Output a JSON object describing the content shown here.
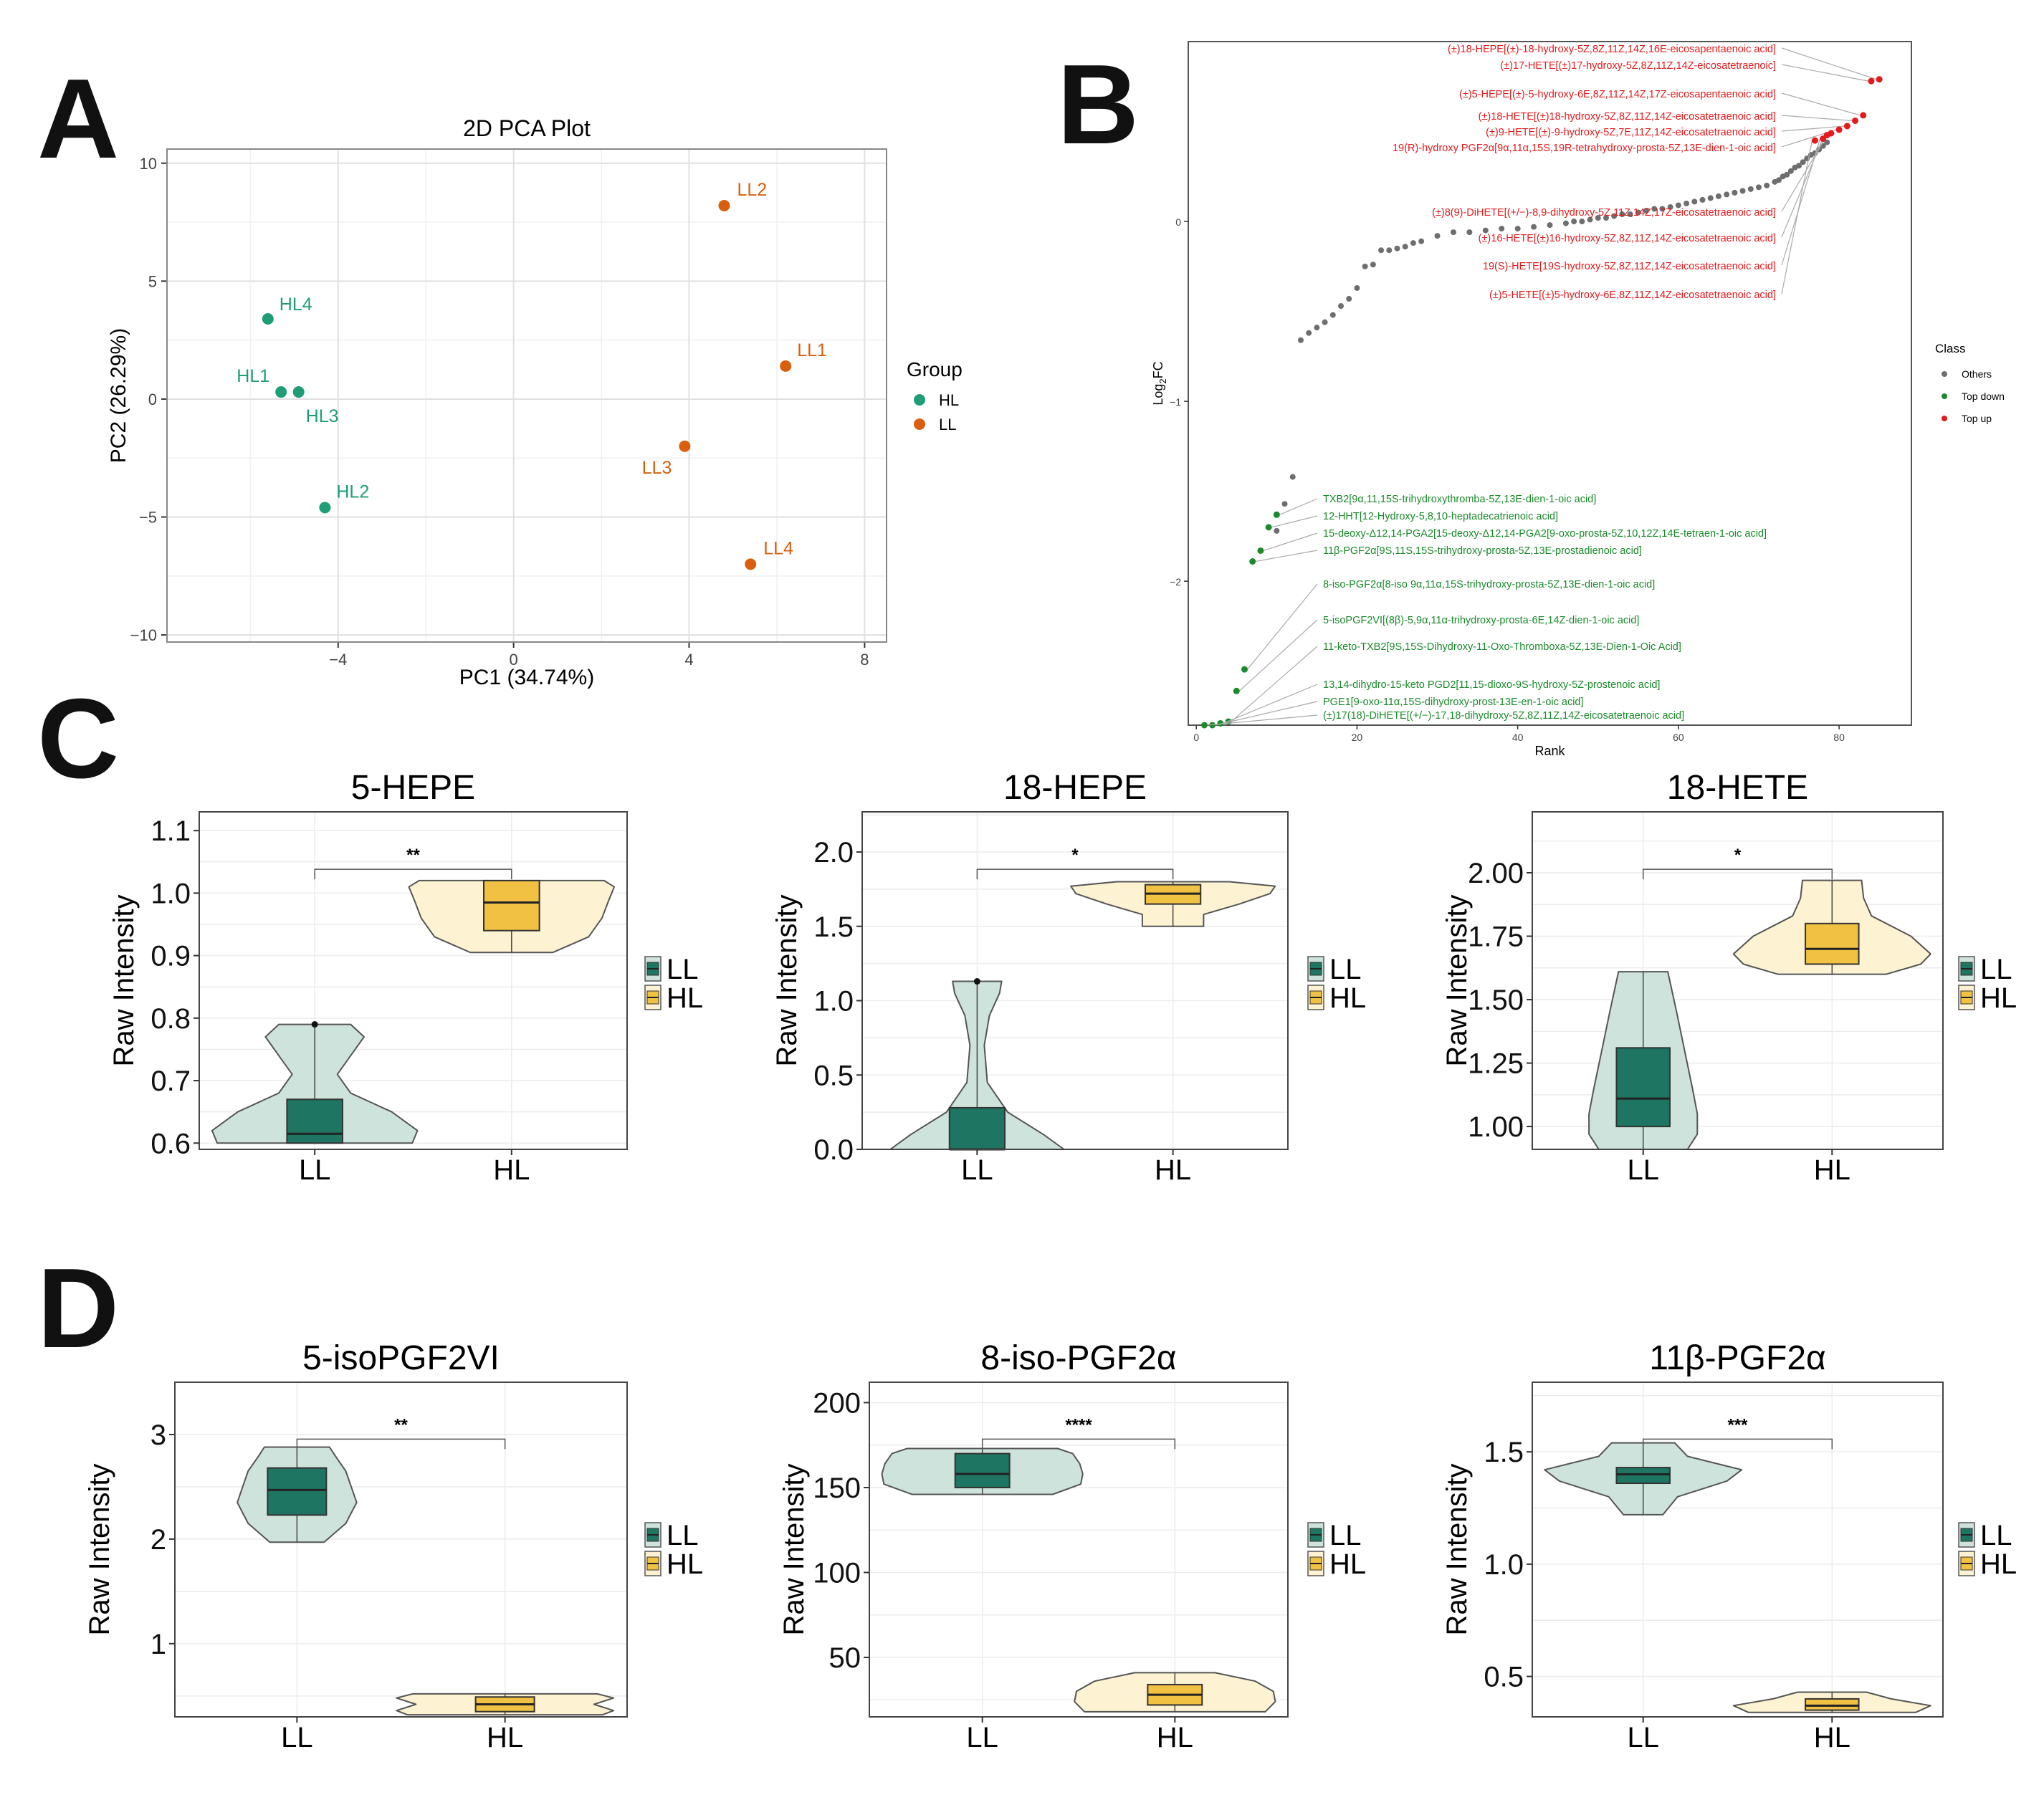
{
  "colors": {
    "hl_point": "#1f9d77",
    "ll_point": "#d95f0e",
    "red": "#e41a1c",
    "green": "#1a8a2a",
    "gray": "#6e6e6e",
    "ll_dark": "#1e7561",
    "ll_light": "#cfe3dd",
    "hl_dark": "#f0c143",
    "hl_light": "#fdf2d2"
  },
  "panel_letters": [
    "A",
    "B",
    "C",
    "D"
  ],
  "chart_data": [
    {
      "type": "scatter",
      "panel": "A",
      "title": "2D PCA Plot",
      "xlabel": "PC1 (34.74%)",
      "ylabel": "PC2 (26.29%)",
      "xlim": [
        -7.9,
        8.5
      ],
      "ylim": [
        -10.3,
        10.6
      ],
      "xticks": [
        -4,
        0,
        4,
        8
      ],
      "xtick_labels": [
        "−4",
        "0",
        "4",
        "8"
      ],
      "yticks": [
        10,
        5,
        0,
        -5,
        -10
      ],
      "ytick_labels": [
        "10",
        "5",
        "0",
        "−5",
        "−10"
      ],
      "legend_title": "Group",
      "legend": [
        "HL",
        "LL"
      ],
      "series": [
        {
          "name": "HL",
          "points": [
            {
              "label": "HL4",
              "x": -5.6,
              "y": 3.4
            },
            {
              "label": "HL1",
              "x": -5.3,
              "y": 0.3
            },
            {
              "label": "HL3",
              "x": -4.9,
              "y": 0.3
            },
            {
              "label": "HL2",
              "x": -4.3,
              "y": -4.6
            }
          ]
        },
        {
          "name": "LL",
          "points": [
            {
              "label": "LL2",
              "x": 4.8,
              "y": 8.2
            },
            {
              "label": "LL1",
              "x": 6.2,
              "y": 1.4
            },
            {
              "label": "LL3",
              "x": 3.9,
              "y": -2.0
            },
            {
              "label": "LL4",
              "x": 5.4,
              "y": -7.0
            }
          ]
        }
      ]
    },
    {
      "type": "scatter",
      "panel": "B",
      "xlabel": "Rank",
      "ylabel": "Log2FC",
      "xlim": [
        -1,
        89
      ],
      "ylim": [
        -2.8,
        1.0
      ],
      "xticks": [
        0,
        20,
        40,
        60,
        80
      ],
      "yticks": [
        0,
        -1,
        -2
      ],
      "ytick_labels": [
        "0",
        "−1",
        "−2"
      ],
      "legend_title": "Class",
      "legend": [
        "Others",
        "Top down",
        "Top up"
      ],
      "others_values": [
        -1.42,
        -1.57,
        -1.72,
        -0.66,
        -0.62,
        -0.59,
        -0.56,
        -0.52,
        -0.47,
        -0.43,
        -0.37,
        -0.25,
        -0.24,
        -0.16,
        -0.16,
        -0.15,
        -0.14,
        -0.12,
        -0.11,
        -0.08,
        -0.06,
        -0.06,
        -0.05,
        -0.04,
        -0.04,
        -0.03,
        -0.02,
        -0.01,
        0.0,
        0.0,
        0.01,
        0.02,
        0.02,
        0.03,
        0.04,
        0.04,
        0.05,
        0.06,
        0.07,
        0.07,
        0.08,
        0.09,
        0.1,
        0.11,
        0.12,
        0.13,
        0.14,
        0.15,
        0.16,
        0.17,
        0.18,
        0.19,
        0.2,
        0.22,
        0.23,
        0.25,
        0.26,
        0.28,
        0.3,
        0.31,
        0.33,
        0.35,
        0.37,
        0.38,
        0.4,
        0.42,
        0.44
      ],
      "others_ranks": [
        12,
        11,
        10,
        13,
        14,
        15,
        16,
        17,
        18,
        19,
        20,
        21,
        22,
        23,
        24,
        25,
        26,
        27,
        28,
        30,
        32,
        34,
        36,
        38,
        40,
        42,
        44,
        46,
        47,
        48,
        49,
        50,
        51,
        52,
        53,
        54,
        55,
        56,
        57,
        58,
        59,
        60,
        61,
        62,
        63,
        64,
        65,
        66,
        67,
        68,
        69,
        70,
        71,
        72,
        72.5,
        73,
        73.5,
        74,
        74.5,
        75,
        75.5,
        76,
        76.5,
        77,
        77.5,
        78,
        78.5
      ],
      "top_up": [
        {
          "rank": 85,
          "value": 0.79,
          "label": "(±)18-HEPE[(±)-18-hydroxy-5Z,8Z,11Z,14Z,16E-eicosapentaenoic acid]"
        },
        {
          "rank": 84,
          "value": 0.78,
          "label": "(±)17-HETE[(±)17-hydroxy-5Z,8Z,11Z,14Z-eicosatetraenoic]"
        },
        {
          "rank": 83,
          "value": 0.59,
          "label": "(±)5-HEPE[(±)-5-hydroxy-6E,8Z,11Z,14Z,17Z-eicosapentaenoic acid]"
        },
        {
          "rank": 82,
          "value": 0.56,
          "label": "(±)18-HETE[(±)18-hydroxy-5Z,8Z,11Z,14Z-eicosatetraenoic acid]"
        },
        {
          "rank": 81,
          "value": 0.53,
          "label": "(±)9-HETE[(±)-9-hydroxy-5Z,7E,11Z,14Z-eicosatetraenoic acid]"
        },
        {
          "rank": 80,
          "value": 0.51,
          "label": "19(R)-hydroxy PGF2α[9α,11α,15S,19R-tetrahydroxy-prosta-5Z,13E-dien-1-oic acid]"
        },
        {
          "rank": 79,
          "value": 0.49,
          "label": "(±)8(9)-DiHETE[(+/−)-8,9-dihydroxy-5Z,11Z,14Z,17Z-eicosatetraenoic acid]"
        },
        {
          "rank": 78.5,
          "value": 0.48,
          "label": "(±)16-HETE[(±)16-hydroxy-5Z,8Z,11Z,14Z-eicosatetraenoic acid]"
        },
        {
          "rank": 78,
          "value": 0.46,
          "label": "19(S)-HETE[19S-hydroxy-5Z,8Z,11Z,14Z-eicosatetraenoic acid]"
        },
        {
          "rank": 77,
          "value": 0.45,
          "label": "(±)5-HETE[(±)5-hydroxy-6E,8Z,11Z,14Z-eicosatetraenoic acid]"
        }
      ],
      "top_down": [
        {
          "rank": 10,
          "value": -1.63,
          "label": "TXB2[9α,11,15S-trihydroxythromba-5Z,13E-dien-1-oic acid]"
        },
        {
          "rank": 9,
          "value": -1.7,
          "label": "12-HHT[12-Hydroxy-5,8,10-heptadecatrienoic acid]"
        },
        {
          "rank": 8,
          "value": -1.83,
          "label": "15-deoxy-Δ12,14-PGA2[15-deoxy-Δ12,14-PGA2[9-oxo-prosta-5Z,10,12Z,14E-tetraen-1-oic acid]"
        },
        {
          "rank": 7,
          "value": -1.89,
          "label": "11β-PGF2α[9S,11S,15S-trihydroxy-prosta-5Z,13E-prostadienoic acid]"
        },
        {
          "rank": 6,
          "value": -2.49,
          "label": "8-iso-PGF2α[8-iso 9α,11α,15S-trihydroxy-prosta-5Z,13E-dien-1-oic acid]"
        },
        {
          "rank": 5,
          "value": -2.61,
          "label": "5-isoPGF2VI[(8β)-5,9α,11α-trihydroxy-prosta-6E,14Z-dien-1-oic acid]"
        },
        {
          "rank": 4,
          "value": -2.78,
          "label": "11-keto-TXB2[9S,15S-Dihydroxy-11-Oxo-Thromboxa-5Z,13E-Dien-1-Oic Acid]"
        },
        {
          "rank": 3,
          "value": -2.79,
          "label": "13,14-dihydro-15-keto PGD2[11,15-dioxo-9S-hydroxy-5Z-prostenoic acid]"
        },
        {
          "rank": 2,
          "value": -2.8,
          "label": "PGE1[9-oxo-11α,15S-dihydroxy-prost-13E-en-1-oic acid]"
        },
        {
          "rank": 1,
          "value": -2.8,
          "label": "(±)17(18)-DiHETE[(+/−)-17,18-dihydroxy-5Z,8Z,11Z,14Z-eicosatetraenoic acid]"
        }
      ]
    },
    {
      "type": "violin",
      "panel": "C",
      "title": "5-HEPE",
      "ylabel": "Raw Intensity",
      "categories": [
        "LL",
        "HL"
      ],
      "ylim": [
        0.59,
        1.13
      ],
      "yticks": [
        0.6,
        0.7,
        0.8,
        0.9,
        1.0,
        1.1
      ],
      "ytick_labels": [
        "0.6",
        "0.7",
        "0.8",
        "0.9",
        "1.0",
        "1.1"
      ],
      "significance": "**",
      "legend": [
        "LL",
        "HL"
      ],
      "groups": [
        {
          "name": "LL",
          "min": 0.6,
          "max": 0.79,
          "q1": 0.6,
          "median": 0.615,
          "q3": 0.67,
          "outliers": [
            0.79
          ],
          "profile": [
            [
              0.6,
              0.95
            ],
            [
              0.62,
              1.0
            ],
            [
              0.65,
              0.75
            ],
            [
              0.68,
              0.35
            ],
            [
              0.71,
              0.22
            ],
            [
              0.74,
              0.35
            ],
            [
              0.77,
              0.48
            ],
            [
              0.79,
              0.35
            ]
          ]
        },
        {
          "name": "HL",
          "min": 0.905,
          "max": 1.02,
          "q1": 0.94,
          "median": 0.985,
          "q3": 1.02,
          "outliers": [],
          "profile": [
            [
              0.905,
              0.4
            ],
            [
              0.93,
              0.75
            ],
            [
              0.96,
              0.88
            ],
            [
              0.99,
              0.95
            ],
            [
              1.01,
              1.0
            ],
            [
              1.02,
              0.9
            ]
          ]
        }
      ]
    },
    {
      "type": "violin",
      "panel": "C",
      "title": "18-HEPE",
      "ylabel": "Raw Intensity",
      "categories": [
        "LL",
        "HL"
      ],
      "ylim": [
        0.0,
        2.27
      ],
      "yticks": [
        0.0,
        0.5,
        1.0,
        1.5,
        2.0
      ],
      "ytick_labels": [
        "0.0",
        "0.5",
        "1.0",
        "1.5",
        "2.0"
      ],
      "significance": "*",
      "legend": [
        "LL",
        "HL"
      ],
      "groups": [
        {
          "name": "LL",
          "min": 0.0,
          "max": 1.13,
          "q1": 0.0,
          "median": 0.0,
          "q3": 0.28,
          "outliers": [
            1.13
          ],
          "profile": [
            [
              0.0,
              0.85
            ],
            [
              0.1,
              0.65
            ],
            [
              0.25,
              0.3
            ],
            [
              0.45,
              0.1
            ],
            [
              0.7,
              0.07
            ],
            [
              0.9,
              0.12
            ],
            [
              1.05,
              0.22
            ],
            [
              1.13,
              0.24
            ]
          ]
        },
        {
          "name": "HL",
          "min": 1.5,
          "max": 1.8,
          "q1": 1.65,
          "median": 1.72,
          "q3": 1.78,
          "outliers": [],
          "profile": [
            [
              1.5,
              0.3
            ],
            [
              1.58,
              0.3
            ],
            [
              1.65,
              0.65
            ],
            [
              1.72,
              0.95
            ],
            [
              1.77,
              1.0
            ],
            [
              1.8,
              0.55
            ]
          ]
        }
      ]
    },
    {
      "type": "violin",
      "panel": "C",
      "title": "18-HETE",
      "ylabel": "Raw Intensity",
      "categories": [
        "LL",
        "HL"
      ],
      "ylim": [
        0.91,
        2.24
      ],
      "yticks": [
        1.0,
        1.25,
        1.5,
        1.75,
        2.0
      ],
      "ytick_labels": [
        "1.00",
        "1.25",
        "1.50",
        "1.75",
        "2.00"
      ],
      "significance": "*",
      "legend": [
        "LL",
        "HL"
      ],
      "groups": [
        {
          "name": "LL",
          "min": 0.91,
          "max": 1.61,
          "q1": 1.0,
          "median": 1.11,
          "q3": 1.31,
          "outliers": [],
          "profile": [
            [
              0.91,
              0.45
            ],
            [
              0.97,
              0.55
            ],
            [
              1.05,
              0.55
            ],
            [
              1.15,
              0.5
            ],
            [
              1.3,
              0.42
            ],
            [
              1.45,
              0.34
            ],
            [
              1.61,
              0.25
            ]
          ]
        },
        {
          "name": "HL",
          "min": 1.6,
          "max": 1.97,
          "q1": 1.64,
          "median": 1.7,
          "q3": 1.8,
          "outliers": [],
          "profile": [
            [
              1.6,
              0.55
            ],
            [
              1.64,
              0.9
            ],
            [
              1.68,
              1.0
            ],
            [
              1.75,
              0.8
            ],
            [
              1.83,
              0.4
            ],
            [
              1.9,
              0.32
            ],
            [
              1.97,
              0.3
            ]
          ]
        }
      ]
    },
    {
      "type": "violin",
      "panel": "D",
      "title": "5-isoPGF2VI",
      "ylabel": "Raw Intensity",
      "categories": [
        "LL",
        "HL"
      ],
      "ylim": [
        0.3,
        3.5
      ],
      "yticks": [
        1,
        2,
        3
      ],
      "ytick_labels": [
        "1",
        "2",
        "3"
      ],
      "significance": "**",
      "legend": [
        "LL",
        "HL"
      ],
      "groups": [
        {
          "name": "LL",
          "min": 1.97,
          "max": 2.88,
          "q1": 2.23,
          "median": 2.47,
          "q3": 2.68,
          "outliers": [],
          "profile": [
            [
              1.97,
              0.25
            ],
            [
              2.15,
              0.45
            ],
            [
              2.35,
              0.55
            ],
            [
              2.5,
              0.5
            ],
            [
              2.65,
              0.45
            ],
            [
              2.8,
              0.35
            ],
            [
              2.88,
              0.3
            ]
          ]
        },
        {
          "name": "HL",
          "min": 0.32,
          "max": 0.52,
          "q1": 0.35,
          "median": 0.42,
          "q3": 0.49,
          "outliers": [],
          "profile": [
            [
              0.32,
              0.9
            ],
            [
              0.36,
              1.0
            ],
            [
              0.42,
              0.82
            ],
            [
              0.48,
              1.0
            ],
            [
              0.52,
              0.85
            ]
          ]
        }
      ]
    },
    {
      "type": "violin",
      "panel": "D",
      "title": "8-iso-PGF2α",
      "ylabel": "Raw Intensity",
      "categories": [
        "LL",
        "HL"
      ],
      "ylim": [
        15,
        212
      ],
      "yticks": [
        50,
        100,
        150,
        200
      ],
      "ytick_labels": [
        "50",
        "100",
        "150",
        "200"
      ],
      "significance": "****",
      "legend": [
        "LL",
        "HL"
      ],
      "groups": [
        {
          "name": "LL",
          "min": 146,
          "max": 173,
          "q1": 150,
          "median": 158,
          "q3": 170,
          "outliers": [],
          "profile": [
            [
              146,
              0.7
            ],
            [
              152,
              0.98
            ],
            [
              158,
              1.0
            ],
            [
              164,
              0.97
            ],
            [
              170,
              0.9
            ],
            [
              173,
              0.75
            ]
          ]
        },
        {
          "name": "HL",
          "min": 18,
          "max": 41,
          "q1": 22,
          "median": 28,
          "q3": 34,
          "outliers": [],
          "profile": [
            [
              18,
              0.9
            ],
            [
              24,
              1.0
            ],
            [
              30,
              0.98
            ],
            [
              36,
              0.8
            ],
            [
              41,
              0.4
            ]
          ]
        }
      ]
    },
    {
      "type": "violin",
      "panel": "D",
      "title": "11β-PGF2α",
      "ylabel": "Raw Intensity",
      "categories": [
        "LL",
        "HL"
      ],
      "ylim": [
        0.32,
        1.81
      ],
      "yticks": [
        0.5,
        1.0,
        1.5
      ],
      "ytick_labels": [
        "0.5",
        "1.0",
        "1.5"
      ],
      "significance": "***",
      "legend": [
        "LL",
        "HL"
      ],
      "groups": [
        {
          "name": "LL",
          "min": 1.22,
          "max": 1.54,
          "q1": 1.36,
          "median": 1.4,
          "q3": 1.43,
          "outliers": [],
          "profile": [
            [
              1.22,
              0.2
            ],
            [
              1.3,
              0.35
            ],
            [
              1.37,
              0.85
            ],
            [
              1.42,
              1.0
            ],
            [
              1.48,
              0.45
            ],
            [
              1.54,
              0.32
            ]
          ]
        },
        {
          "name": "HL",
          "min": 0.34,
          "max": 0.43,
          "q1": 0.35,
          "median": 0.37,
          "q3": 0.4,
          "outliers": [],
          "profile": [
            [
              0.34,
              0.85
            ],
            [
              0.37,
              1.0
            ],
            [
              0.4,
              0.6
            ],
            [
              0.43,
              0.35
            ]
          ]
        }
      ]
    }
  ]
}
